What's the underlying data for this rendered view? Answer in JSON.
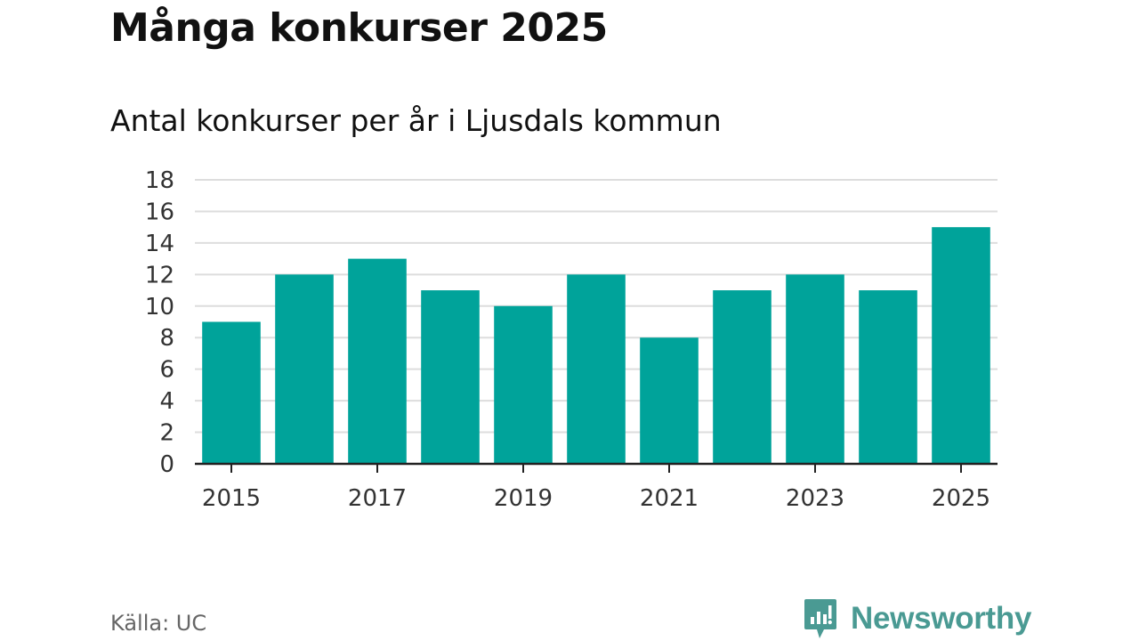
{
  "header": {
    "title": "Många konkurser 2025",
    "subtitle": "Antal konkurser per år i Ljusdals kommun"
  },
  "footer": {
    "source": "Källa: UC",
    "brand": "Newsworthy",
    "brand_icon": "bar-chart-speech-bubble-icon"
  },
  "colors": {
    "bar": "#00A39A",
    "brand": "#4A9A93",
    "grid": "#DDDDDD",
    "axis": "#222222"
  },
  "chart_data": {
    "type": "bar",
    "title": "Många konkurser 2025",
    "subtitle": "Antal konkurser per år i Ljusdals kommun",
    "categories": [
      "2015",
      "2016",
      "2017",
      "2018",
      "2019",
      "2020",
      "2021",
      "2022",
      "2023",
      "2024",
      "2025"
    ],
    "values": [
      9,
      12,
      13,
      11,
      10,
      12,
      8,
      11,
      12,
      11,
      15
    ],
    "x_tick_labels": [
      "2015",
      "2017",
      "2019",
      "2021",
      "2023",
      "2025"
    ],
    "y_ticks": [
      0,
      2,
      4,
      6,
      8,
      10,
      12,
      14,
      16,
      18
    ],
    "ylim": [
      0,
      18
    ],
    "xlabel": "",
    "ylabel": "",
    "grid": "horizontal",
    "legend": "none"
  }
}
